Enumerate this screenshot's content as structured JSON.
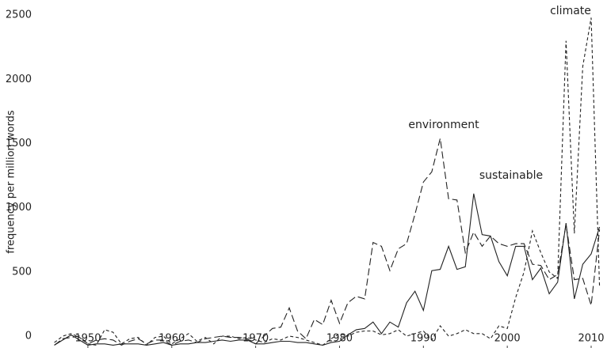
{
  "chart_data": {
    "type": "line",
    "y_label": "frequency per million words",
    "x": [
      1946,
      1947,
      1948,
      1949,
      1950,
      1951,
      1952,
      1953,
      1954,
      1955,
      1956,
      1957,
      1958,
      1959,
      1960,
      1961,
      1962,
      1963,
      1964,
      1965,
      1966,
      1967,
      1968,
      1969,
      1970,
      1971,
      1972,
      1973,
      1974,
      1975,
      1976,
      1977,
      1978,
      1979,
      1980,
      1981,
      1982,
      1983,
      1984,
      1985,
      1986,
      1987,
      1988,
      1989,
      1990,
      1991,
      1992,
      1993,
      1994,
      1995,
      1996,
      1997,
      1998,
      1999,
      2000,
      2001,
      2002,
      2003,
      2004,
      2005,
      2006,
      2007,
      2008,
      2009,
      2010,
      2011
    ],
    "series": [
      {
        "name": "environment",
        "color": "#222222",
        "dash": "9 4",
        "values": [
          -70,
          -20,
          -10,
          0,
          -60,
          -30,
          -20,
          -30,
          -70,
          -40,
          -20,
          -60,
          -30,
          -30,
          -70,
          -40,
          -30,
          -50,
          -20,
          -10,
          0,
          -10,
          -10,
          -20,
          -60,
          0,
          60,
          70,
          220,
          40,
          -20,
          130,
          90,
          280,
          100,
          260,
          310,
          290,
          730,
          700,
          510,
          680,
          720,
          950,
          1200,
          1280,
          1540,
          1070,
          1060,
          650,
          810,
          700,
          780,
          720,
          700,
          720,
          720,
          560,
          550,
          440,
          480,
          870,
          440,
          450,
          240,
          830
        ]
      },
      {
        "name": "sustainable",
        "color": "#222222",
        "dash": "none",
        "values": [
          -70,
          -30,
          10,
          -30,
          -70,
          -60,
          -60,
          -70,
          -60,
          -60,
          -60,
          -70,
          -60,
          -50,
          -70,
          -60,
          -60,
          -50,
          -50,
          -40,
          -30,
          -40,
          -30,
          -30,
          -60,
          -60,
          -50,
          -40,
          -40,
          -50,
          -50,
          -60,
          -70,
          -50,
          -40,
          10,
          50,
          60,
          110,
          20,
          110,
          70,
          260,
          350,
          200,
          510,
          520,
          700,
          520,
          540,
          1110,
          790,
          780,
          580,
          470,
          700,
          700,
          440,
          530,
          330,
          420,
          880,
          290,
          560,
          640,
          850
        ]
      },
      {
        "name": "climate",
        "color": "#222222",
        "dash": "4 3",
        "values": [
          -50,
          0,
          20,
          -10,
          -60,
          -70,
          50,
          30,
          -60,
          -20,
          -10,
          -70,
          -10,
          0,
          -60,
          -20,
          20,
          -40,
          -10,
          -60,
          0,
          0,
          -20,
          -10,
          -30,
          -50,
          -20,
          -30,
          0,
          -10,
          -30,
          -50,
          -70,
          -20,
          20,
          0,
          30,
          40,
          40,
          10,
          20,
          50,
          0,
          20,
          40,
          -30,
          80,
          0,
          20,
          50,
          20,
          20,
          -20,
          80,
          60,
          300,
          500,
          820,
          650,
          500,
          450,
          2300,
          800,
          2100,
          2480,
          380
        ]
      }
    ],
    "xlim": [
      1945,
      2011.7
    ],
    "xticks": [
      1950,
      1960,
      1970,
      1980,
      1990,
      2000,
      2010
    ],
    "ylim": [
      -80,
      2550
    ],
    "yticks": [
      0,
      500,
      1000,
      1500,
      2000,
      2500
    ],
    "grid": false,
    "legend": "direct-labels"
  }
}
